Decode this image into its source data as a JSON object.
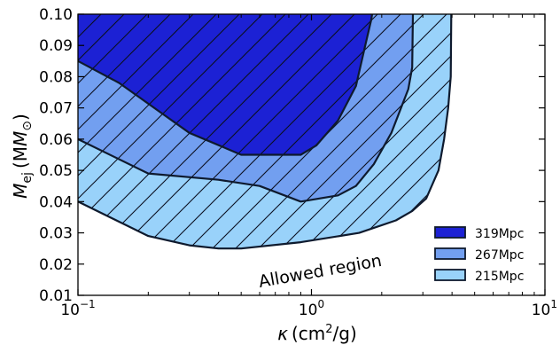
{
  "chart_data": {
    "type": "area",
    "xlabel_symbol": "κ",
    "xlabel_unit_base": "(cm",
    "xlabel_unit_exp": "2",
    "xlabel_unit_rest": "/g)",
    "ylabel_main": "M",
    "ylabel_sub": "ej",
    "ylabel_unit_open": "(M",
    "ylabel_unit_sub": "⊙",
    "ylabel_unit_close": ")",
    "xscale": "log",
    "xlim": [
      0.1,
      10
    ],
    "ylim": [
      0.01,
      0.1
    ],
    "x_ticks": [
      {
        "value": 0.1,
        "base": "10",
        "exp": "−1"
      },
      {
        "value": 1,
        "base": "10",
        "exp": "0"
      },
      {
        "value": 10,
        "base": "10",
        "exp": "1"
      }
    ],
    "y_ticks": [
      {
        "value": 0.01,
        "label": "0.01"
      },
      {
        "value": 0.02,
        "label": "0.02"
      },
      {
        "value": 0.03,
        "label": "0.03"
      },
      {
        "value": 0.04,
        "label": "0.04"
      },
      {
        "value": 0.05,
        "label": "0.05"
      },
      {
        "value": 0.06,
        "label": "0.06"
      },
      {
        "value": 0.07,
        "label": "0.07"
      },
      {
        "value": 0.08,
        "label": "0.08"
      },
      {
        "value": 0.09,
        "label": "0.09"
      },
      {
        "value": 0.1,
        "label": "0.10"
      }
    ],
    "series": [
      {
        "name": "215Mpc",
        "color": "#99d2fa",
        "hatch": true,
        "boundary": [
          [
            0.1,
            0.04
          ],
          [
            0.2,
            0.029
          ],
          [
            0.3,
            0.026
          ],
          [
            0.4,
            0.025
          ],
          [
            0.5,
            0.025
          ],
          [
            0.9,
            0.027
          ],
          [
            1.6,
            0.03
          ],
          [
            2.3,
            0.034
          ],
          [
            2.7,
            0.037
          ],
          [
            3.1,
            0.041
          ],
          [
            3.5,
            0.05
          ],
          [
            3.7,
            0.06
          ],
          [
            3.85,
            0.07
          ],
          [
            3.95,
            0.08
          ],
          [
            3.97,
            0.1
          ]
        ]
      },
      {
        "name": "267Mpc",
        "color": "#729ff0",
        "hatch": true,
        "boundary": [
          [
            0.1,
            0.06
          ],
          [
            0.2,
            0.049
          ],
          [
            0.4,
            0.047
          ],
          [
            0.6,
            0.045
          ],
          [
            0.9,
            0.04
          ],
          [
            1.3,
            0.042
          ],
          [
            1.55,
            0.045
          ],
          [
            1.85,
            0.052
          ],
          [
            2.2,
            0.062
          ],
          [
            2.6,
            0.076
          ],
          [
            2.7,
            0.083
          ],
          [
            2.72,
            0.1
          ]
        ]
      },
      {
        "name": "319Mpc",
        "color": "#1c21d4",
        "hatch": true,
        "boundary": [
          [
            0.1,
            0.085
          ],
          [
            0.15,
            0.078
          ],
          [
            0.3,
            0.062
          ],
          [
            0.5,
            0.055
          ],
          [
            0.9,
            0.055
          ],
          [
            1.05,
            0.058
          ],
          [
            1.3,
            0.066
          ],
          [
            1.55,
            0.077
          ],
          [
            1.7,
            0.09
          ],
          [
            1.8,
            0.098
          ],
          [
            1.82,
            0.1
          ]
        ]
      }
    ],
    "legend": {
      "placement": "lower-right",
      "entries": [
        {
          "label": "319Mpc",
          "color": "#1c21d4"
        },
        {
          "label": "267Mpc",
          "color": "#729ff0"
        },
        {
          "label": "215Mpc",
          "color": "#99d2fa"
        }
      ]
    },
    "annotations": [
      {
        "text": "Allowed region",
        "x": 1.1,
        "y": 0.016,
        "rotation_deg": -10
      }
    ]
  }
}
